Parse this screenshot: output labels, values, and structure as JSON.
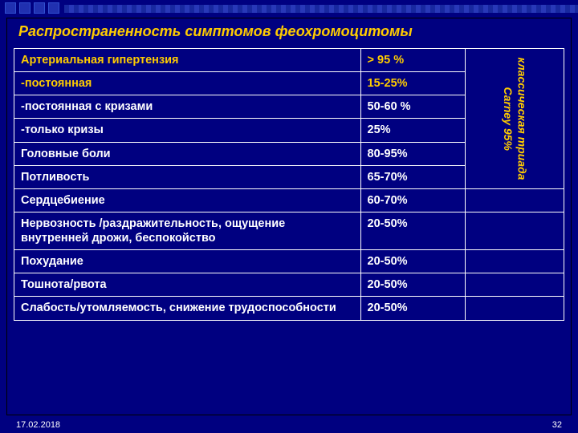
{
  "title": "Распространенность симптомов феохромоцитомы",
  "side_label": "классическая триада\nCarney 95%",
  "rows": [
    {
      "symptom": "Артериальная гипертензия",
      "value": "> 95 %",
      "yellow": true
    },
    {
      "symptom": "-постоянная",
      "value": "15-25%",
      "yellow": true
    },
    {
      "symptom": "-постоянная с кризами",
      "value": "50-60 %",
      "yellow": false
    },
    {
      "symptom": "-только кризы",
      "value": "25%",
      "yellow": false
    },
    {
      "symptom": "Головные боли",
      "value": "80-95%",
      "yellow": false
    },
    {
      "symptom": "Потливость",
      "value": "65-70%",
      "yellow": false
    },
    {
      "symptom": "Сердцебиение",
      "value": "60-70%",
      "yellow": false
    },
    {
      "symptom": "Нервозность /раздражительность, ощущение внутренней дрожи, беспокойство",
      "value": "20-50%",
      "yellow": false
    },
    {
      "symptom": "Похудание",
      "value": "20-50%",
      "yellow": false
    },
    {
      "symptom": "Тошнота/рвота",
      "value": "20-50%",
      "yellow": false
    },
    {
      "symptom": "Слабость/утомляемость, снижение трудоспособности",
      "value": "20-50%",
      "yellow": false
    }
  ],
  "side_span_rows": 6,
  "footer": {
    "date": "17.02.2018",
    "page": "32"
  },
  "colors": {
    "background": "#000080",
    "accent": "#ffcc00",
    "text": "#ffffff",
    "border": "#ffffff"
  }
}
